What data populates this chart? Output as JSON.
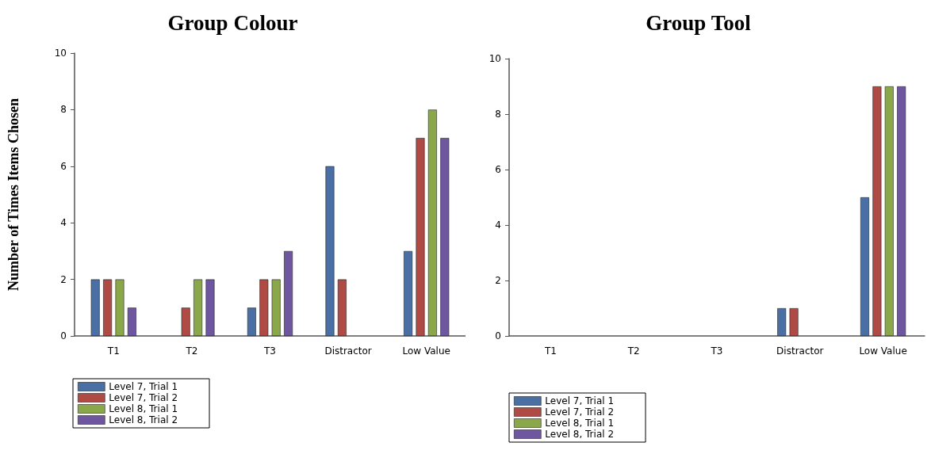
{
  "chart_data": [
    {
      "type": "bar",
      "title": "Group Colour",
      "ylabel": "Number of Times Items Chosen",
      "categories": [
        "T1",
        "T2",
        "T3",
        "Distractor",
        "Low Value"
      ],
      "ylim": [
        0,
        10
      ],
      "yticks": [
        0,
        2,
        4,
        6,
        8,
        10
      ],
      "grid": false,
      "legend": "bottom left",
      "series": [
        {
          "name": "Level 7, Trial 1",
          "color": "#4a6fa5",
          "values": [
            2,
            0,
            1,
            6,
            3
          ]
        },
        {
          "name": "Level 7, Trial 2",
          "color": "#b04a45",
          "values": [
            2,
            1,
            2,
            2,
            7
          ]
        },
        {
          "name": "Level 8, Trial 1",
          "color": "#8aa84a",
          "values": [
            2,
            2,
            2,
            0,
            8
          ]
        },
        {
          "name": "Level 8, Trial 2",
          "color": "#6e57a0",
          "values": [
            1,
            2,
            3,
            0,
            7
          ]
        }
      ]
    },
    {
      "type": "bar",
      "title": "Group Tool",
      "categories": [
        "T1",
        "T2",
        "T3",
        "Distractor",
        "Low Value"
      ],
      "ylim": [
        0,
        10
      ],
      "yticks": [
        0,
        2,
        4,
        6,
        8,
        10
      ],
      "grid": false,
      "legend": "bottom left",
      "series": [
        {
          "name": "Level 7, Trial 1",
          "color": "#4a6fa5",
          "values": [
            0,
            0,
            0,
            1,
            5
          ]
        },
        {
          "name": "Level 7, Trial 2",
          "color": "#b04a45",
          "values": [
            0,
            0,
            0,
            1,
            9
          ]
        },
        {
          "name": "Level 8, Trial 1",
          "color": "#8aa84a",
          "values": [
            0,
            0,
            0,
            0,
            9
          ]
        },
        {
          "name": "Level 8, Trial 2",
          "color": "#6e57a0",
          "values": [
            0,
            0,
            0,
            0,
            9
          ]
        }
      ]
    }
  ]
}
